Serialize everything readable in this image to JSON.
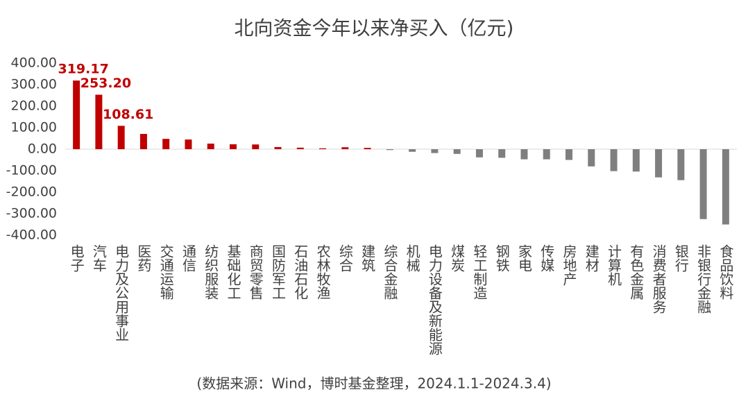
{
  "chart_data": {
    "type": "bar",
    "title": "北向资金今年以来净买入（亿元)",
    "note": "(数据来源：Wind，博时基金整理，2024.1.1-2024.3.4)",
    "categories": [
      "电子",
      "汽车",
      "电力及公用事业",
      "医药",
      "交通运输",
      "通信",
      "纺织服装",
      "基础化工",
      "商贸零售",
      "国防军工",
      "石油石化",
      "农林牧渔",
      "综合",
      "建筑",
      "综合金融",
      "机械",
      "电力设备及新能源",
      "煤炭",
      "轻工制造",
      "钢铁",
      "家电",
      "传媒",
      "房地产",
      "建材",
      "计算机",
      "有色金属",
      "消费者服务",
      "银行",
      "非银行金融",
      "食品饮料"
    ],
    "values": [
      319.17,
      253.2,
      108.61,
      71,
      48,
      45,
      26,
      23,
      22,
      10,
      7,
      4,
      9,
      6,
      -4,
      -12,
      -18,
      -22,
      -38,
      -40,
      -47,
      -47,
      -50,
      -80,
      -102,
      -104,
      -131,
      -144,
      -325,
      -350
    ],
    "value_labels": [
      "319.17",
      "253.20",
      "108.61",
      null,
      null,
      null,
      null,
      null,
      null,
      null,
      null,
      null,
      null,
      null,
      null,
      null,
      null,
      null,
      null,
      null,
      null,
      null,
      null,
      null,
      null,
      null,
      null,
      null,
      null,
      null
    ],
    "positive_color": "#c00000",
    "negative_color": "#7f7f7f",
    "ylim": [
      -400,
      400
    ],
    "yticks": [
      {
        "value": 400,
        "label": "400.00"
      },
      {
        "value": 300,
        "label": "300.00"
      },
      {
        "value": 200,
        "label": "200.00"
      },
      {
        "value": 100,
        "label": "100.00"
      },
      {
        "value": 0,
        "label": "0.00"
      },
      {
        "value": -100,
        "label": "-100.00"
      },
      {
        "value": -200,
        "label": "-200.00"
      },
      {
        "value": -300,
        "label": "-300.00"
      },
      {
        "value": -400,
        "label": "-400.00"
      }
    ],
    "grid": false
  }
}
